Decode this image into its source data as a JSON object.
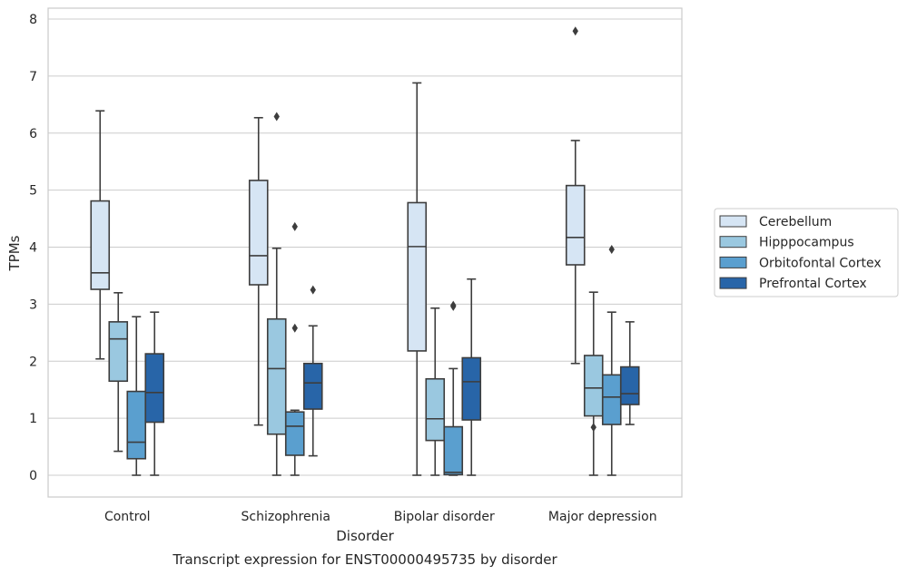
{
  "chart_data": {
    "type": "boxplot",
    "title": "",
    "caption": "Transcript expression for ENST00000495735 by disorder",
    "xlabel": "Disorder",
    "ylabel": "TPMs",
    "ylim": [
      -0.37,
      8.18
    ],
    "yticks": [
      0,
      1,
      2,
      3,
      4,
      5,
      6,
      7,
      8
    ],
    "grid": "horizontal",
    "legend_position": "right",
    "categories": [
      "Control",
      "Schizophrenia",
      "Bipolar disorder",
      "Major depression"
    ],
    "series": [
      {
        "name": "Cerebellum",
        "color": "#d6e5f4",
        "boxes": [
          {
            "whisker_low": 2.04,
            "q1": 3.26,
            "median": 3.55,
            "q3": 4.81,
            "whisker_high": 6.39,
            "outliers": []
          },
          {
            "whisker_low": 0.88,
            "q1": 3.34,
            "median": 3.85,
            "q3": 5.17,
            "whisker_high": 6.27,
            "outliers": []
          },
          {
            "whisker_low": 0.0,
            "q1": 2.18,
            "median": 4.01,
            "q3": 4.78,
            "whisker_high": 6.88,
            "outliers": []
          },
          {
            "whisker_low": 1.96,
            "q1": 3.69,
            "median": 4.17,
            "q3": 5.08,
            "whisker_high": 5.87,
            "outliers": [
              7.79
            ]
          }
        ]
      },
      {
        "name": "Hipppocampus",
        "color": "#9ac8e0",
        "boxes": [
          {
            "whisker_low": 0.42,
            "q1": 1.65,
            "median": 2.39,
            "q3": 2.69,
            "whisker_high": 3.2,
            "outliers": []
          },
          {
            "whisker_low": 0.0,
            "q1": 0.72,
            "median": 1.87,
            "q3": 2.74,
            "whisker_high": 3.98,
            "outliers": [
              6.29
            ]
          },
          {
            "whisker_low": 0.0,
            "q1": 0.61,
            "median": 0.99,
            "q3": 1.69,
            "whisker_high": 2.93,
            "outliers": []
          },
          {
            "whisker_low": 0.0,
            "q1": 1.04,
            "median": 1.53,
            "q3": 2.1,
            "whisker_high": 3.21,
            "outliers": [
              0.84
            ]
          }
        ]
      },
      {
        "name": "Orbitofontal Cortex",
        "color": "#5a9fcf",
        "boxes": [
          {
            "whisker_low": 0.0,
            "q1": 0.29,
            "median": 0.58,
            "q3": 1.47,
            "whisker_high": 2.78,
            "outliers": []
          },
          {
            "whisker_low": 0.0,
            "q1": 0.35,
            "median": 0.86,
            "q3": 1.11,
            "whisker_high": 1.14,
            "outliers": [
              4.36,
              2.58
            ]
          },
          {
            "whisker_low": 0.0,
            "q1": 0.01,
            "median": 0.05,
            "q3": 0.85,
            "whisker_high": 1.87,
            "outliers": [
              2.96,
              2.98
            ]
          },
          {
            "whisker_low": 0.0,
            "q1": 0.89,
            "median": 1.37,
            "q3": 1.76,
            "whisker_high": 2.86,
            "outliers": [
              3.96
            ]
          }
        ]
      },
      {
        "name": "Prefrontal Cortex",
        "color": "#2865a8",
        "boxes": [
          {
            "whisker_low": 0.0,
            "q1": 0.93,
            "median": 1.45,
            "q3": 2.13,
            "whisker_high": 2.86,
            "outliers": []
          },
          {
            "whisker_low": 0.34,
            "q1": 1.16,
            "median": 1.62,
            "q3": 1.96,
            "whisker_high": 2.62,
            "outliers": [
              3.25
            ]
          },
          {
            "whisker_low": 0.0,
            "q1": 0.97,
            "median": 1.64,
            "q3": 2.06,
            "whisker_high": 3.44,
            "outliers": []
          },
          {
            "whisker_low": 0.89,
            "q1": 1.24,
            "median": 1.43,
            "q3": 1.9,
            "whisker_high": 2.69,
            "outliers": []
          }
        ]
      }
    ]
  }
}
